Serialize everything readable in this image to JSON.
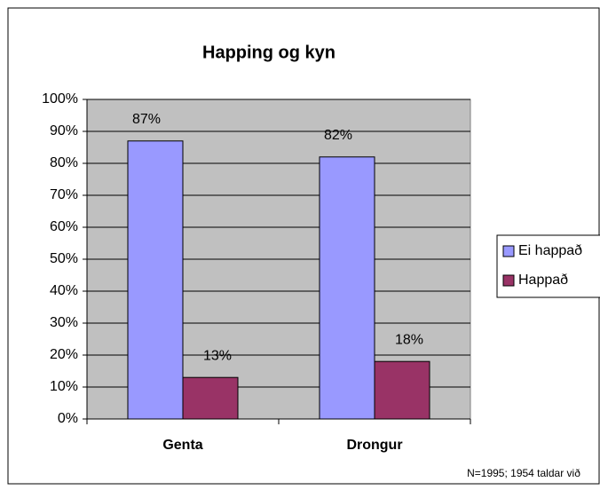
{
  "chart_data": {
    "type": "bar",
    "title": "Happing og kyn",
    "categories": [
      "Genta",
      "Drongur"
    ],
    "series": [
      {
        "name": "Ei happað",
        "color": "#9999ff",
        "values": [
          87,
          82
        ],
        "value_labels": [
          "87%",
          "82%"
        ]
      },
      {
        "name": "Happað",
        "color": "#993366",
        "values": [
          13,
          18
        ],
        "value_labels": [
          "13%",
          "18%"
        ]
      }
    ],
    "ylim": [
      0,
      100
    ],
    "yticks": [
      {
        "value": 0,
        "label": "0%"
      },
      {
        "value": 10,
        "label": "10%"
      },
      {
        "value": 20,
        "label": "20%"
      },
      {
        "value": 30,
        "label": "30%"
      },
      {
        "value": 40,
        "label": "40%"
      },
      {
        "value": 50,
        "label": "50%"
      },
      {
        "value": 60,
        "label": "60%"
      },
      {
        "value": 70,
        "label": "70%"
      },
      {
        "value": 80,
        "label": "80%"
      },
      {
        "value": 90,
        "label": "90%"
      },
      {
        "value": 100,
        "label": "100%"
      }
    ],
    "grid": true,
    "legend": "right",
    "annotation": "N=1995; 1954 taldar við"
  }
}
